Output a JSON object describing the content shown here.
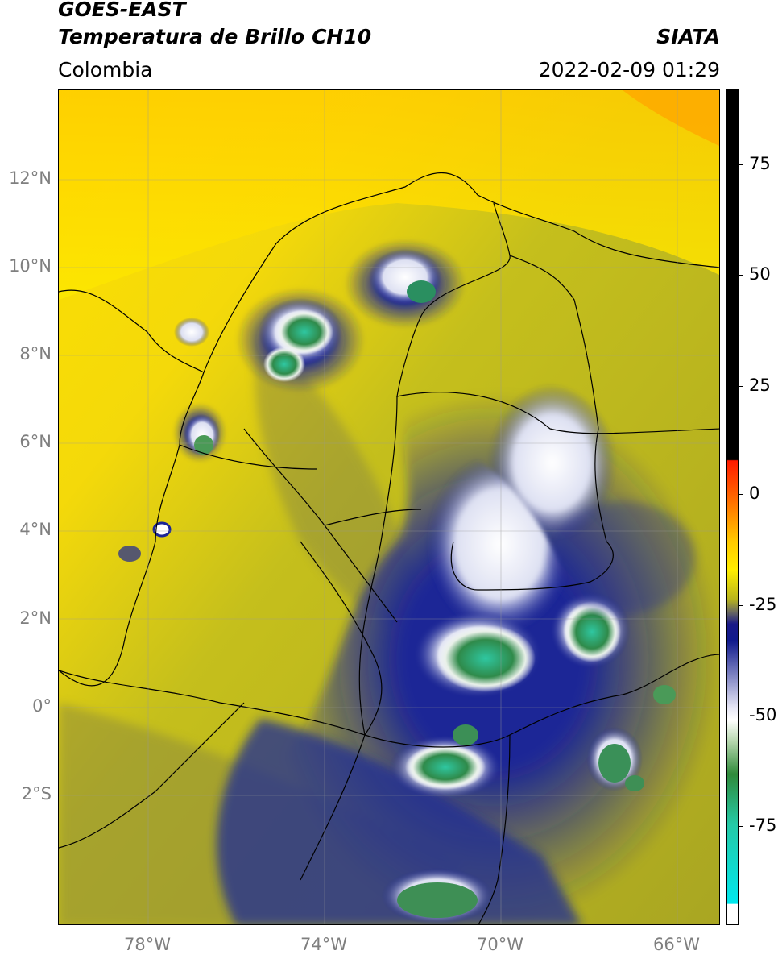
{
  "header": {
    "satellite": "GOES-EAST",
    "product": "Temperatura de Brillo CH10",
    "region": "Colombia",
    "agency": "SIATA",
    "datetime": "2022-02-09 01:29"
  },
  "map": {
    "lat_ticks": [
      "12°N",
      "10°N",
      "8°N",
      "6°N",
      "4°N",
      "2°N",
      "0°",
      "2°S"
    ],
    "lon_ticks": [
      "78°W",
      "74°W",
      "70°W",
      "66°W"
    ],
    "extent_lon": [
      -80,
      -65
    ],
    "extent_lat": [
      -5.2,
      14
    ]
  },
  "colorbar": {
    "ticks": [
      "75",
      "50",
      "25",
      "0",
      "-25",
      "-50",
      "-75"
    ],
    "colors": {
      "top_black": "#000000",
      "red": "#ff2a00",
      "orange": "#ff9a00",
      "yellow": "#ffee00",
      "olive": "#b7b51c",
      "gray": "#6e6e5e",
      "navy": "#101a8c",
      "white": "#ffffff",
      "green": "#2f8a3a",
      "teal": "#25c9a6",
      "cyan": "#00e5ee"
    }
  }
}
